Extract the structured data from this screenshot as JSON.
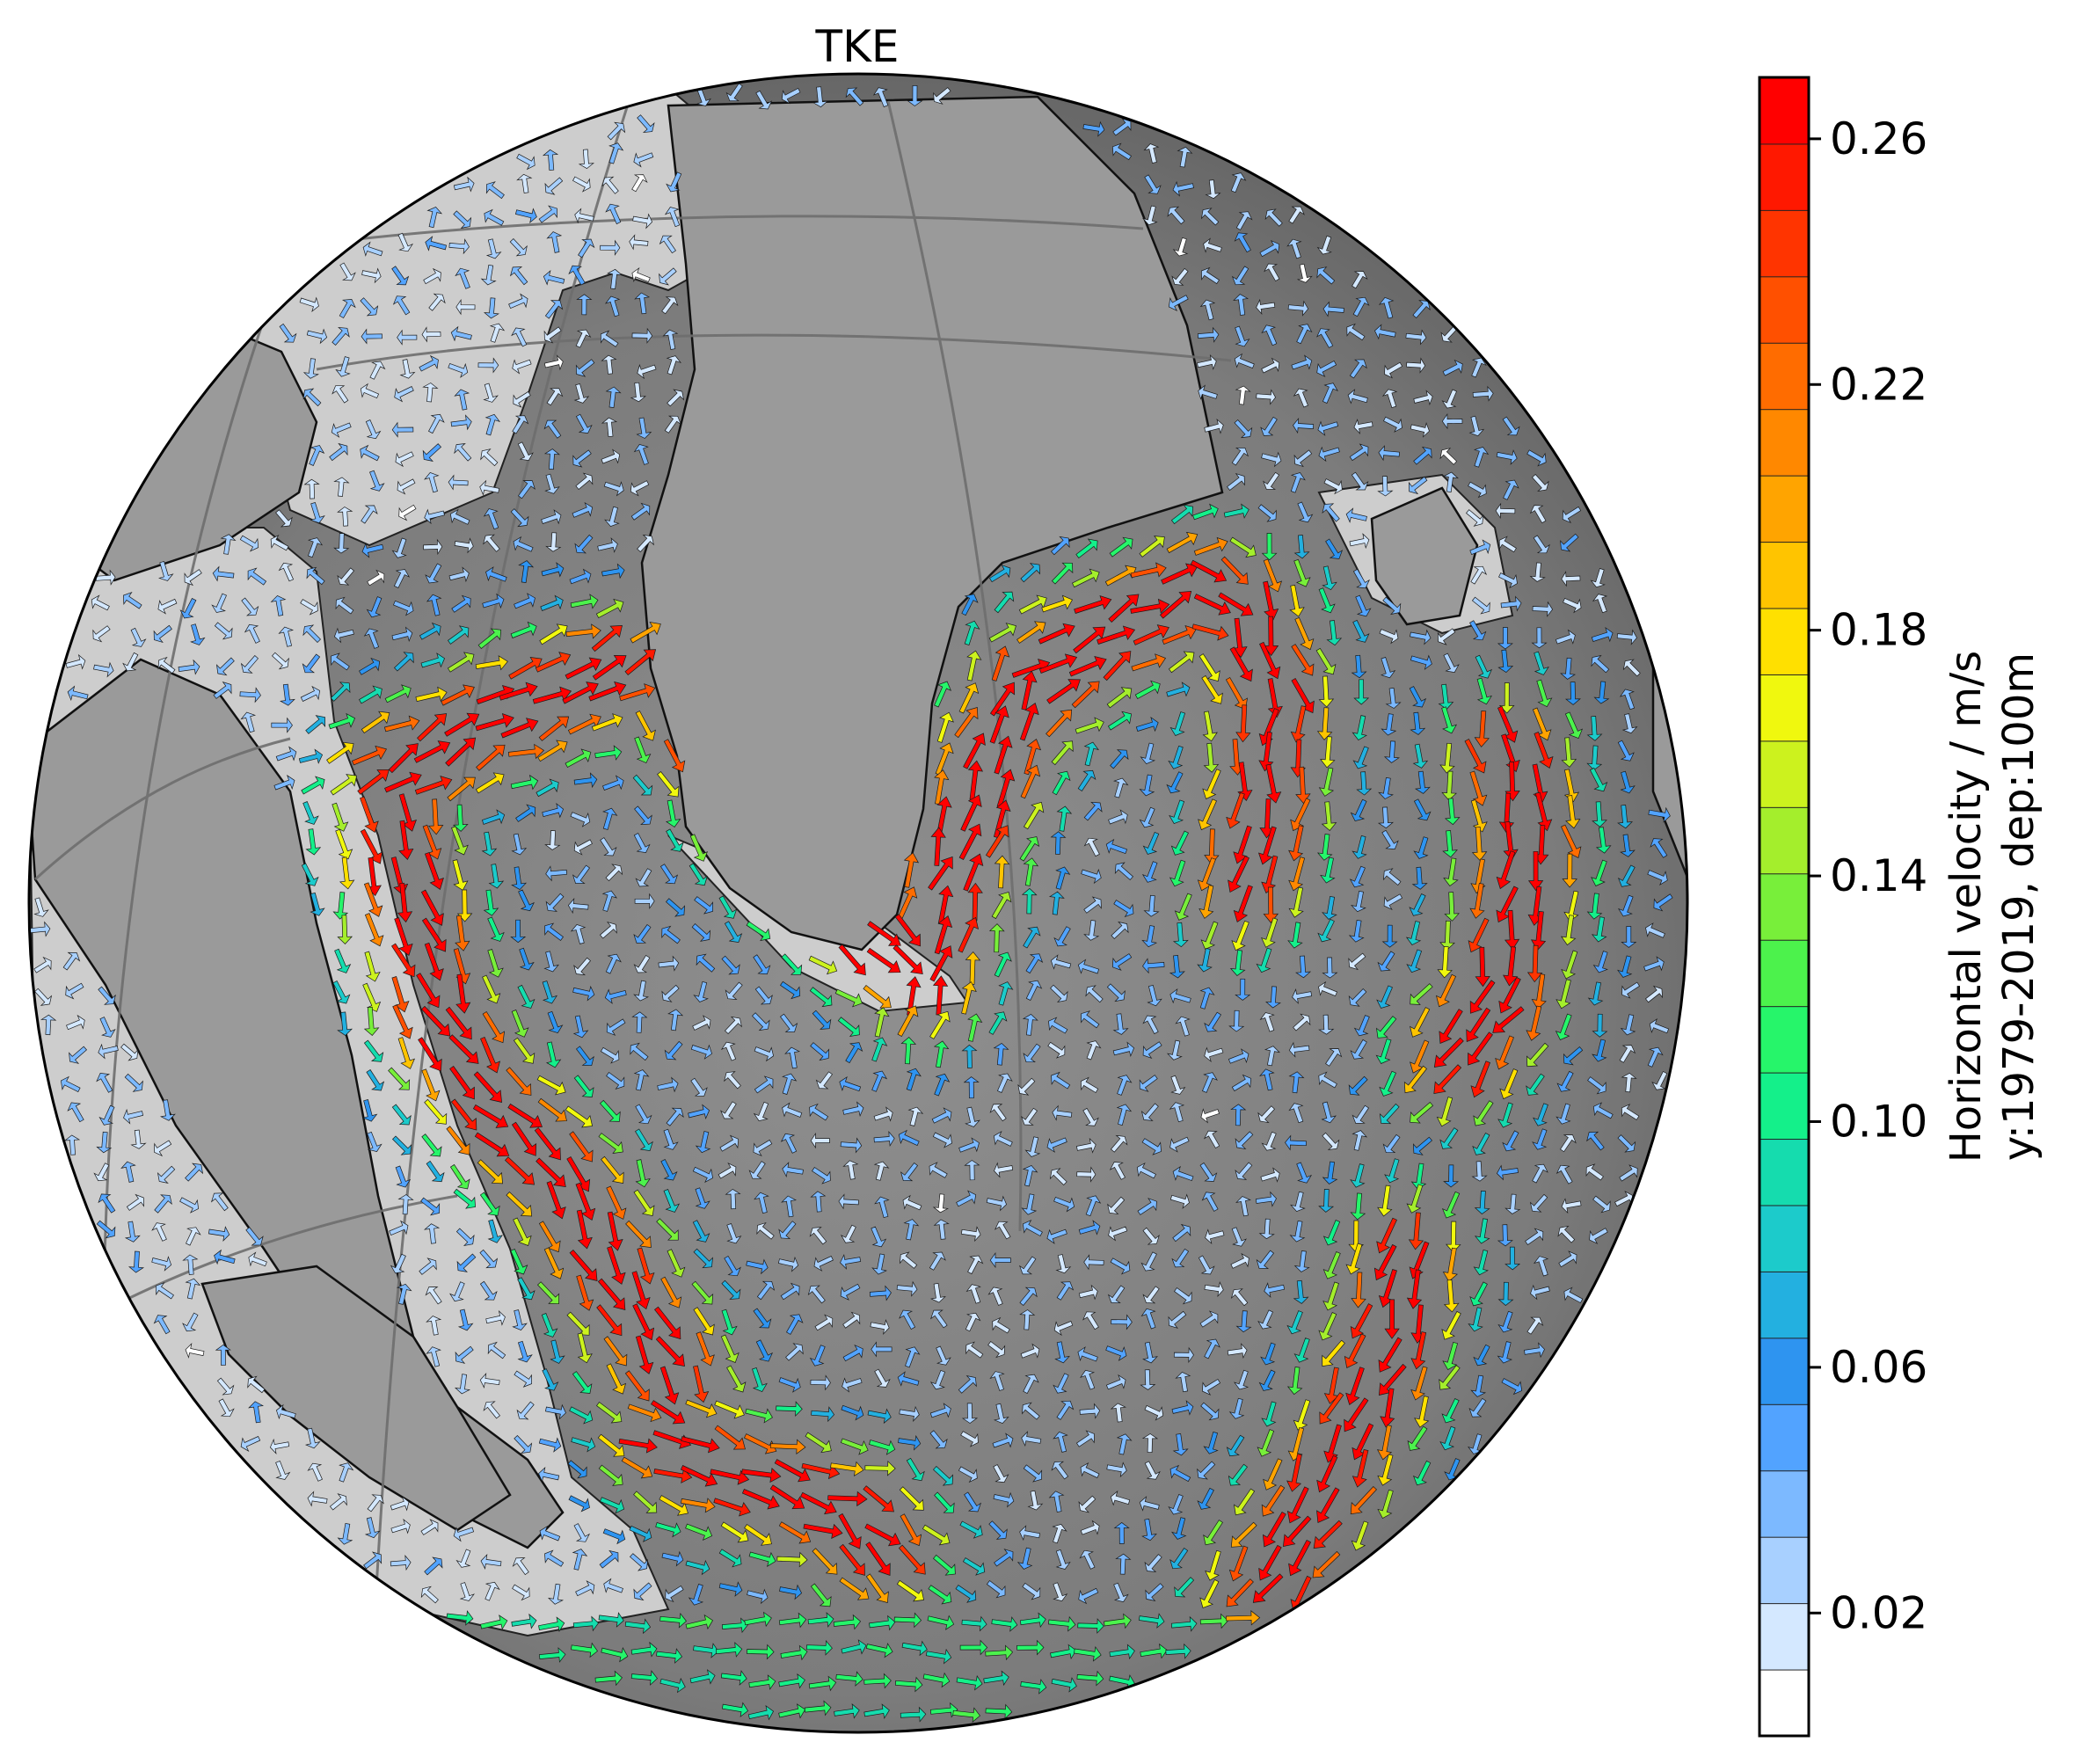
{
  "title": "TKE",
  "colorbar": {
    "label_line1": "Horizontal velocity / m/s",
    "label_line2": "y:1979-2019, dep:100m",
    "min": 0.0,
    "max": 0.27,
    "ticks": [
      "0.02",
      "0.06",
      "0.10",
      "0.14",
      "0.18",
      "0.22",
      "0.26"
    ],
    "tick_values": [
      0.02,
      0.06,
      0.1,
      0.14,
      0.18,
      0.22,
      0.26
    ],
    "colors": [
      "#ffffff",
      "#d4e8ff",
      "#a8d0ff",
      "#7cb9ff",
      "#52a3ff",
      "#2e94f0",
      "#23b0e0",
      "#1ccbcb",
      "#15dcae",
      "#14f08a",
      "#26f56a",
      "#4cf24c",
      "#78ef3a",
      "#a4ee2c",
      "#ccf21e",
      "#f0f80e",
      "#ffe000",
      "#ffc400",
      "#ffa400",
      "#ff8800",
      "#ff6c00",
      "#ff5000",
      "#ff3400",
      "#ff1800",
      "#ff0000"
    ]
  },
  "map": {
    "projection": "orthographic",
    "land_color": "#9a9a9a",
    "shelf_color": "#cccccc",
    "deep_color": "#6e6e6e",
    "grid_color": "#707070"
  }
}
